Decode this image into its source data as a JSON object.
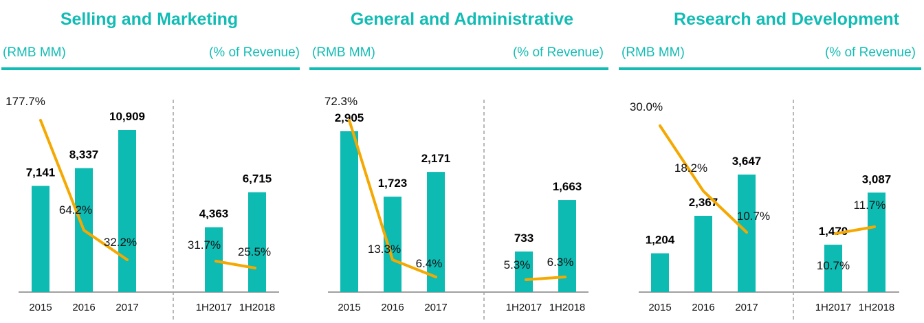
{
  "colors": {
    "bar": "#0DBBB3",
    "line": "#F5A800",
    "accent": "#12BCB4",
    "axis": "#A0A0A0",
    "divider": "#A0A0A0"
  },
  "panels": [
    {
      "title": "Selling and Marketing",
      "unit_left": "(RMB MM)",
      "unit_right": "(% of Revenue)"
    },
    {
      "title": "General and Administrative",
      "unit_left": "(RMB MM)",
      "unit_right": "(% of Revenue)"
    },
    {
      "title": "Research and Development",
      "unit_left": "(RMB MM)",
      "unit_right": "(% of Revenue)"
    }
  ],
  "chart_data": [
    {
      "type": "bar",
      "title": "Selling and Marketing",
      "ylabel": "RMB MM",
      "y2label": "% of Revenue",
      "categories": [
        "2015",
        "2016",
        "2017",
        "1H2017",
        "1H2018"
      ],
      "series": [
        {
          "name": "Expense (RMB MM)",
          "type": "bar",
          "values": [
            7141,
            8337,
            10909,
            4363,
            6715
          ],
          "labels": [
            "7,141",
            "8,337",
            "10,909",
            "4,363",
            "6,715"
          ]
        },
        {
          "name": "% of Revenue",
          "type": "line",
          "values": [
            177.7,
            64.2,
            32.2,
            31.7,
            25.5
          ],
          "labels": [
            "177.7%",
            "64.2%",
            "32.2%",
            "31.7%",
            "25.5%"
          ],
          "segments": [
            [
              0,
              2
            ],
            [
              3,
              4
            ]
          ]
        }
      ],
      "divider_after": 2
    },
    {
      "type": "bar",
      "title": "General and Administrative",
      "ylabel": "RMB MM",
      "y2label": "% of Revenue",
      "categories": [
        "2015",
        "2016",
        "2017",
        "1H2017",
        "1H2018"
      ],
      "series": [
        {
          "name": "Expense (RMB MM)",
          "type": "bar",
          "values": [
            2905,
            1723,
            2171,
            733,
            1663
          ],
          "labels": [
            "2,905",
            "1,723",
            "2,171",
            "733",
            "1,663"
          ]
        },
        {
          "name": "% of Revenue",
          "type": "line",
          "values": [
            72.3,
            13.3,
            6.4,
            5.3,
            6.3
          ],
          "labels": [
            "72.3%",
            "13.3%",
            "6.4%",
            "5.3%",
            "6.3%"
          ],
          "segments": [
            [
              0,
              2
            ],
            [
              3,
              4
            ]
          ]
        }
      ],
      "divider_after": 2
    },
    {
      "type": "bar",
      "title": "Research and Development",
      "ylabel": "RMB MM",
      "y2label": "% of Revenue",
      "categories": [
        "2015",
        "2016",
        "2017",
        "1H2017",
        "1H2018"
      ],
      "series": [
        {
          "name": "Expense (RMB MM)",
          "type": "bar",
          "values": [
            1204,
            2367,
            3647,
            1470,
            3087
          ],
          "labels": [
            "1,204",
            "2,367",
            "3,647",
            "1,470",
            "3,087"
          ]
        },
        {
          "name": "% of Revenue",
          "type": "line",
          "values": [
            30.0,
            18.2,
            10.7,
            10.7,
            11.7
          ],
          "labels": [
            "30.0%",
            "18.2%",
            "10.7%",
            "10.7%",
            "11.7%"
          ],
          "segments": [
            [
              0,
              2
            ],
            [
              3,
              4
            ]
          ]
        }
      ],
      "divider_after": 2
    }
  ]
}
